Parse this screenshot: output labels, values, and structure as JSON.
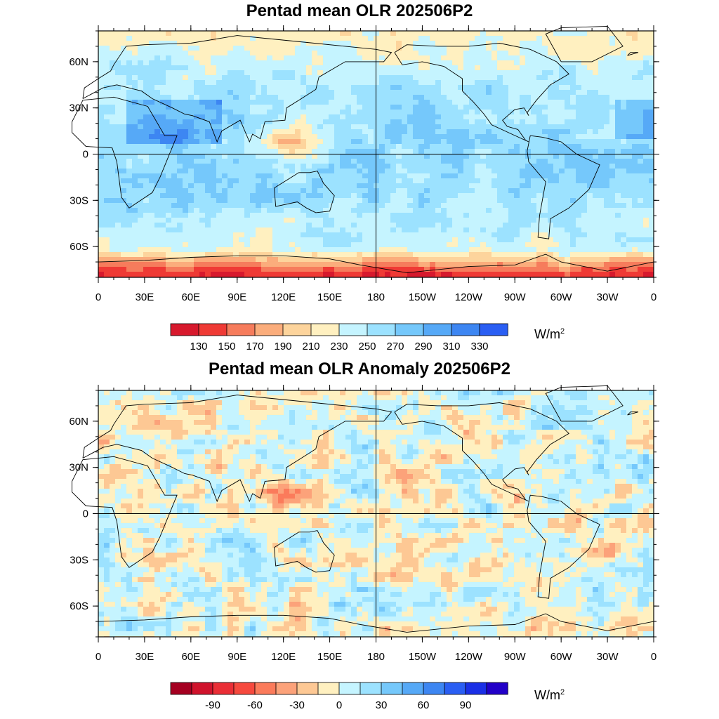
{
  "panels": [
    {
      "title": "Pentad mean OLR 202506P2",
      "lat_labels": [
        "60N",
        "30N",
        "0",
        "30S",
        "60S"
      ],
      "lon_labels": [
        "0",
        "30E",
        "60E",
        "90E",
        "120E",
        "150E",
        "180",
        "150W",
        "120W",
        "90W",
        "60W",
        "30W",
        "0"
      ],
      "colorbar": {
        "colors": [
          "#d7192d",
          "#ef3a35",
          "#f67c5c",
          "#fbad7c",
          "#fdd49c",
          "#fff0c0",
          "#c5f4ff",
          "#9ce2ff",
          "#75c8fb",
          "#56a9f7",
          "#3d86f2",
          "#2a5ef3"
        ],
        "labels": [
          "130",
          "150",
          "170",
          "190",
          "210",
          "230",
          "250",
          "270",
          "290",
          "310",
          "330"
        ],
        "unit": "W/m",
        "unit_sup": "2"
      }
    },
    {
      "title": "Pentad mean OLR Anomaly 202506P2",
      "lat_labels": [
        "60N",
        "30N",
        "0",
        "30S",
        "60S"
      ],
      "lon_labels": [
        "0",
        "30E",
        "60E",
        "90E",
        "120E",
        "150E",
        "180",
        "150W",
        "120W",
        "90W",
        "60W",
        "30W",
        "0"
      ],
      "colorbar": {
        "colors": [
          "#a50021",
          "#d0132c",
          "#ea2e36",
          "#f6493e",
          "#fb7b5b",
          "#fca27a",
          "#fdc894",
          "#fff0c0",
          "#c5f4ff",
          "#9ce2ff",
          "#75c8fb",
          "#56a9f7",
          "#3d86f2",
          "#2a5ef3",
          "#1a2fe6",
          "#2200c8"
        ],
        "labels": [
          "",
          "-90",
          "",
          "-60",
          "",
          "-30",
          "",
          "0",
          "",
          "30",
          "",
          "60",
          "",
          "90",
          ""
        ],
        "unit": "W/m",
        "unit_sup": "2"
      }
    }
  ]
}
